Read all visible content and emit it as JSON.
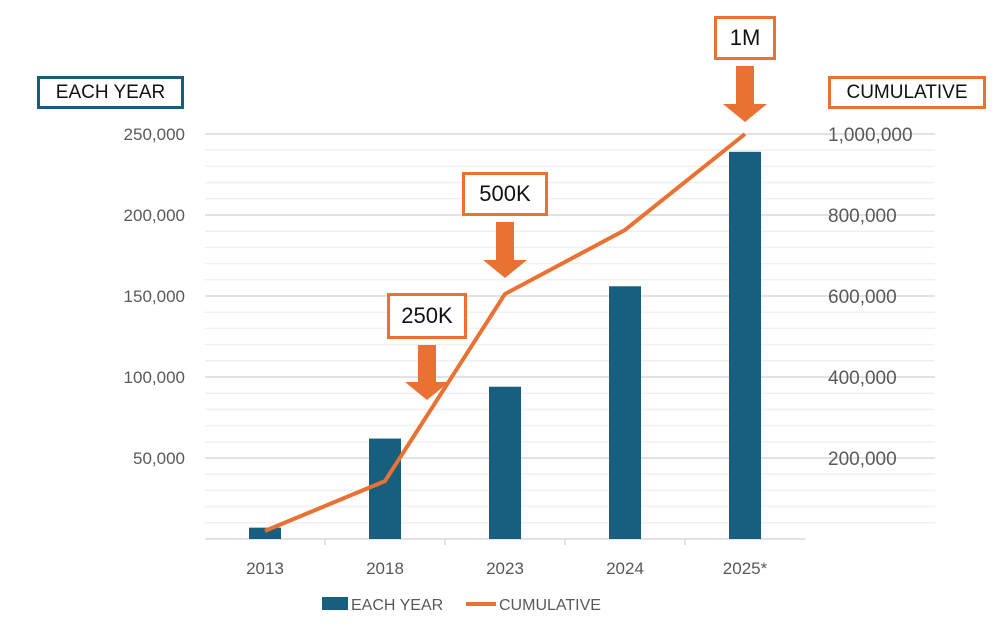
{
  "chart_data": {
    "type": "bar+line",
    "categories": [
      "2013",
      "2018",
      "2023",
      "2024",
      "2025*"
    ],
    "series": [
      {
        "name": "EACH YEAR",
        "type": "bar",
        "axis": "left",
        "values": [
          7000,
          62000,
          94000,
          156000,
          239000
        ]
      },
      {
        "name": "CUMULATIVE",
        "type": "line",
        "axis": "right",
        "values": [
          20000,
          143000,
          605000,
          763000,
          1000000
        ]
      }
    ],
    "left_axis": {
      "label": "EACH YEAR",
      "ylim": [
        0,
        250000
      ],
      "ticks": [
        "50,000",
        "100,000",
        "150,000",
        "200,000",
        "250,000"
      ]
    },
    "right_axis": {
      "label": "CUMULATIVE",
      "ylim": [
        0,
        1000000
      ],
      "ticks": [
        "200,000",
        "400,000",
        "600,000",
        "800,000",
        "1,000,000"
      ]
    },
    "annotations": [
      {
        "text": "250K",
        "category_index": 1.35,
        "value": 250000
      },
      {
        "text": "500K",
        "category_index": 2,
        "value": 500000
      },
      {
        "text": "1M",
        "category_index": 4,
        "value": 1000000
      }
    ],
    "legend": {
      "placement": "bottom",
      "items": [
        "EACH YEAR",
        "CUMULATIVE"
      ]
    },
    "grid": true,
    "colors": {
      "bar": "#175e7f",
      "line": "#e97132",
      "tick": "#595959"
    }
  }
}
